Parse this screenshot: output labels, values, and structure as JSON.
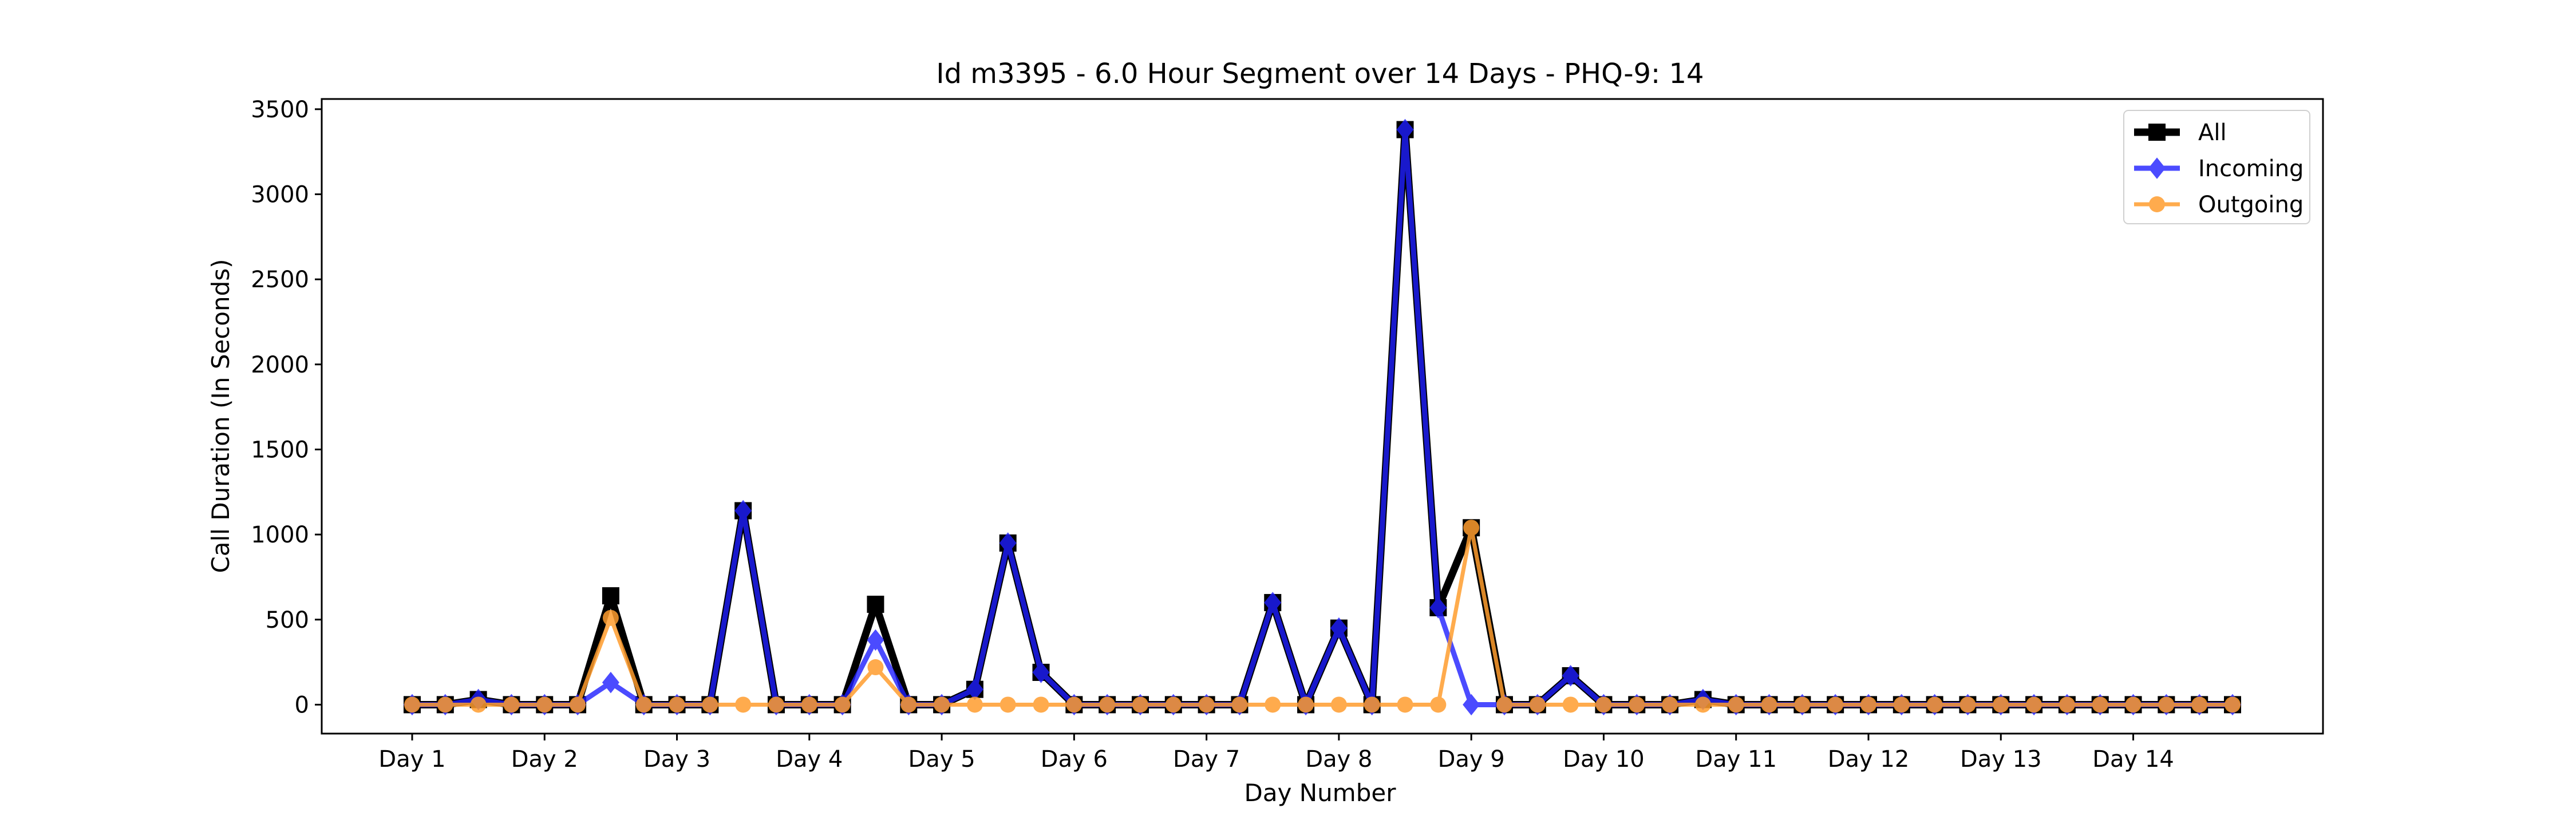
{
  "chart_data": {
    "type": "line",
    "title": "Id m3395 - 6.0 Hour Segment over 14 Days - PHQ-9: 14",
    "xlabel": "Day Number",
    "ylabel": "Call Duration (In Seconds)",
    "x_tick_labels": [
      "Day 1",
      "Day 2",
      "Day 3",
      "Day 4",
      "Day 5",
      "Day 6",
      "Day 7",
      "Day 8",
      "Day 9",
      "Day 10",
      "Day 11",
      "Day 12",
      "Day 13",
      "Day 14"
    ],
    "segments_per_day": 4,
    "ylim": [
      -170,
      3560
    ],
    "yticks": [
      0,
      500,
      1000,
      1500,
      2000,
      2500,
      3000,
      3500
    ],
    "legend_position": "upper right",
    "series": [
      {
        "name": "All",
        "color": "#000000",
        "marker": "square",
        "values": [
          0,
          0,
          30,
          0,
          0,
          0,
          640,
          0,
          0,
          0,
          1140,
          0,
          0,
          0,
          590,
          0,
          0,
          90,
          950,
          190,
          0,
          0,
          0,
          0,
          0,
          0,
          600,
          0,
          450,
          0,
          3380,
          570,
          1040,
          0,
          0,
          170,
          0,
          0,
          0,
          30,
          0,
          0,
          0,
          0,
          0,
          0,
          0,
          0,
          0,
          0,
          0,
          0,
          0,
          0,
          0,
          0
        ]
      },
      {
        "name": "Incoming",
        "color": "#1f1fff",
        "marker": "diamond",
        "values": [
          0,
          0,
          30,
          0,
          0,
          0,
          130,
          0,
          0,
          0,
          1140,
          0,
          0,
          0,
          380,
          0,
          0,
          90,
          950,
          190,
          0,
          0,
          0,
          0,
          0,
          0,
          600,
          0,
          450,
          0,
          3380,
          570,
          0,
          0,
          0,
          170,
          0,
          0,
          0,
          30,
          0,
          0,
          0,
          0,
          0,
          0,
          0,
          0,
          0,
          0,
          0,
          0,
          0,
          0,
          0,
          0
        ]
      },
      {
        "name": "Outgoing",
        "color": "#ff9d2e",
        "marker": "circle",
        "values": [
          0,
          0,
          0,
          0,
          0,
          0,
          510,
          0,
          0,
          0,
          0,
          0,
          0,
          0,
          220,
          0,
          0,
          0,
          0,
          0,
          0,
          0,
          0,
          0,
          0,
          0,
          0,
          0,
          0,
          0,
          0,
          0,
          1040,
          0,
          0,
          0,
          0,
          0,
          0,
          0,
          0,
          0,
          0,
          0,
          0,
          0,
          0,
          0,
          0,
          0,
          0,
          0,
          0,
          0,
          0,
          0
        ]
      }
    ]
  }
}
